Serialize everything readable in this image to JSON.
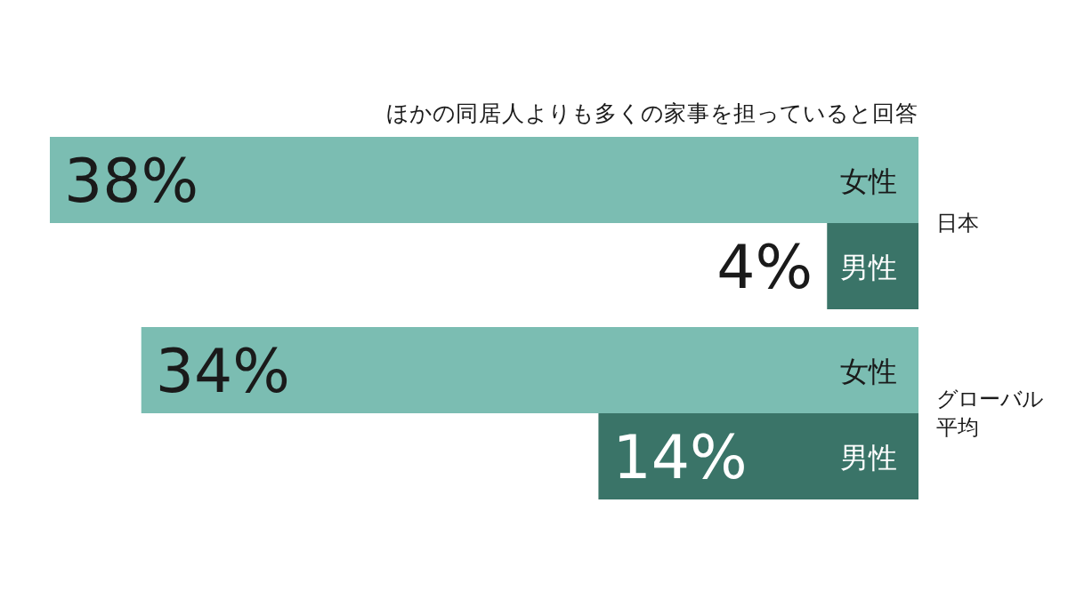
{
  "chart_data": {
    "type": "bar",
    "orientation": "horizontal",
    "title": "ほかの同居人よりも多くの家事を担っていると回答",
    "categories": [
      "日本",
      "グローバル平均"
    ],
    "series": [
      {
        "name": "女性",
        "color": "#7bbdb2",
        "values": [
          38,
          34
        ],
        "value_labels": [
          "38%",
          "34%"
        ]
      },
      {
        "name": "男性",
        "color": "#3a7468",
        "values": [
          4,
          14
        ],
        "value_labels": [
          "4%",
          "14%"
        ]
      }
    ]
  }
}
